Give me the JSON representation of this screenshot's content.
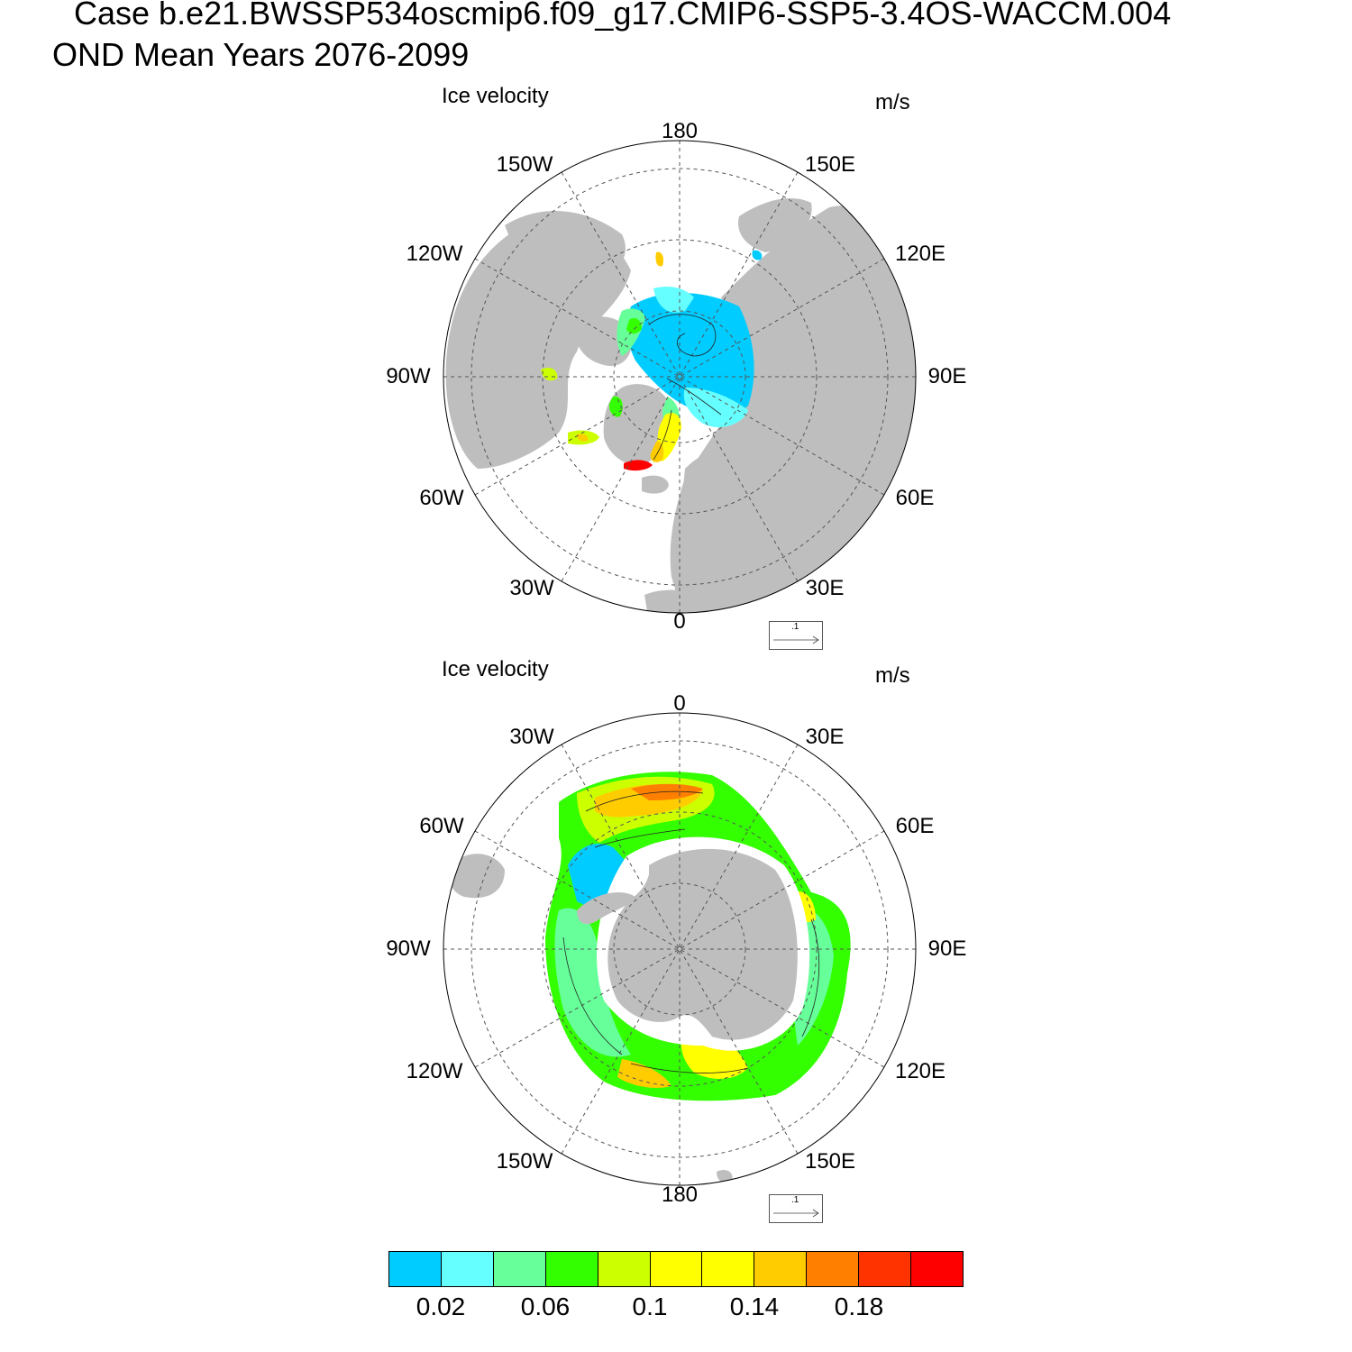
{
  "title": {
    "line1": "Case b.e21.BWSSP534oscmip6.f09_g17.CMIP6-SSP5-3.4OS-WACCM.004",
    "line2": "OND Mean   Years 2076-2099"
  },
  "colors": {
    "land": "#bebebe",
    "grid": "#555555"
  },
  "panels": [
    {
      "variable_label": "Ice velocity",
      "unit_label": "m/s",
      "hemisphere": "north",
      "lon_labels": [
        "180",
        "150E",
        "120E",
        "90E",
        "60E",
        "30E",
        "0",
        "30W",
        "60W",
        "90W",
        "120W",
        "150W"
      ],
      "reference_vector_label": ".1"
    },
    {
      "variable_label": "Ice velocity",
      "unit_label": "m/s",
      "hemisphere": "south",
      "lon_labels": [
        "0",
        "30E",
        "60E",
        "90E",
        "120E",
        "150E",
        "180",
        "150W",
        "120W",
        "90W",
        "60W",
        "30W"
      ],
      "reference_vector_label": ".1"
    }
  ],
  "colorbar": {
    "colors": [
      "#00ccff",
      "#66ffff",
      "#66ff99",
      "#33ff00",
      "#ccff00",
      "#ffff00",
      "#ffff00",
      "#ffcc00",
      "#ff8000",
      "#ff3300",
      "#ff0000"
    ],
    "tick_labels": [
      "0.02",
      "0.06",
      "0.1",
      "0.14",
      "0.18"
    ]
  }
}
